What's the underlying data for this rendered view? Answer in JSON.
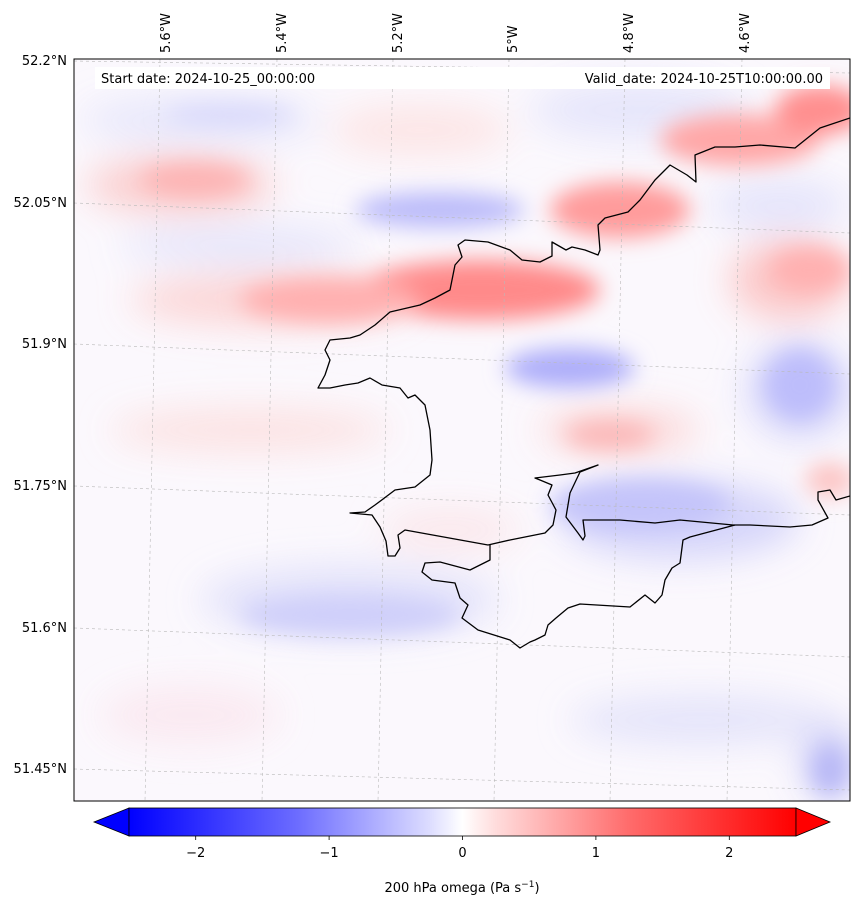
{
  "chart_data": {
    "type": "heatmap",
    "variable_label": "200 hPa omega (Pa s",
    "variable_unit_superscript": "−1",
    "variable_label_close": ")",
    "start_date": "Start date: 2024-10-25_00:00:00",
    "valid_date": "Valid_date: 2024-10-25T10:00:00.00",
    "longitude_ticks": [
      "5.6°W",
      "5.4°W",
      "5.2°W",
      "5°W",
      "4.8°W",
      "4.6°W"
    ],
    "latitude_ticks": [
      "52.2°N",
      "52.05°N",
      "51.9°N",
      "51.75°N",
      "51.6°N",
      "51.45°N"
    ],
    "colorbar": {
      "range": [
        -2.5,
        2.5
      ],
      "ticks": [
        -2,
        -1,
        0,
        1,
        2
      ],
      "tick_labels": [
        "−2",
        "−1",
        "0",
        "1",
        "2"
      ],
      "low_color": "#0000ff",
      "mid_color": "#ffffff",
      "high_color": "#ff0000",
      "extend": "both"
    },
    "features": {
      "ascent_core_1": "Strong positive band near 52.0°N, 5.1°W to 4.7°W",
      "ascent_core_2": "Positive band near 51.85°N, 4.8°W",
      "descent_core_1": "Negative core near 52.05°N, 5.05°W",
      "descent_core_2": "Negative core near 51.87°N, 4.85°W",
      "descent_core_3": "Negative band near 51.72°N, 4.6°W"
    }
  }
}
